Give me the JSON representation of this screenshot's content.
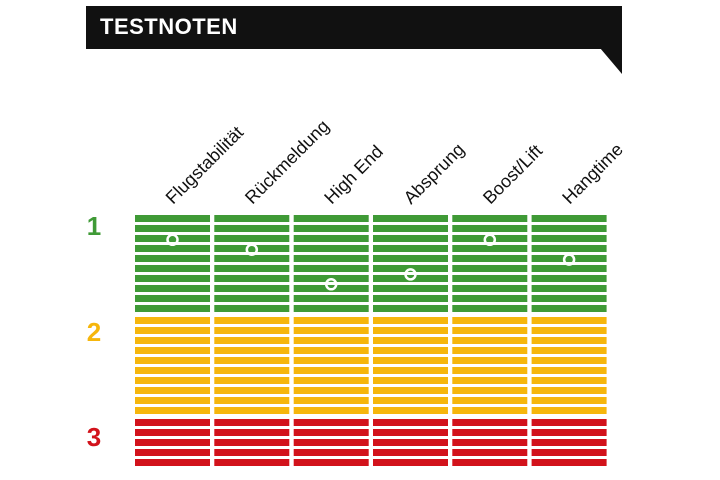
{
  "header": {
    "title": "TESTNOTEN"
  },
  "colors": {
    "banner": "#111111",
    "grade_1": "#3f9a36",
    "grade_2": "#f6b60c",
    "grade_3": "#d2121b",
    "marker": "#ffffff"
  },
  "chart_data": {
    "type": "scatter",
    "title": "TESTNOTEN",
    "categories": [
      "Flugstabilität",
      "Rückmeldung",
      "High End",
      "Absprung",
      "Boost/Lift",
      "Hangtime"
    ],
    "y_tick_labels": [
      "1",
      "2",
      "3"
    ],
    "ylim": [
      1,
      3
    ],
    "y_inverted": true,
    "values": [
      1.25,
      1.35,
      1.7,
      1.6,
      1.25,
      1.45
    ],
    "bands": [
      {
        "label": "1",
        "color": "#3f9a36",
        "rows": 10
      },
      {
        "label": "2",
        "color": "#f6b60c",
        "rows": 10
      },
      {
        "label": "3",
        "color": "#d2121b",
        "rows": 5
      }
    ]
  }
}
